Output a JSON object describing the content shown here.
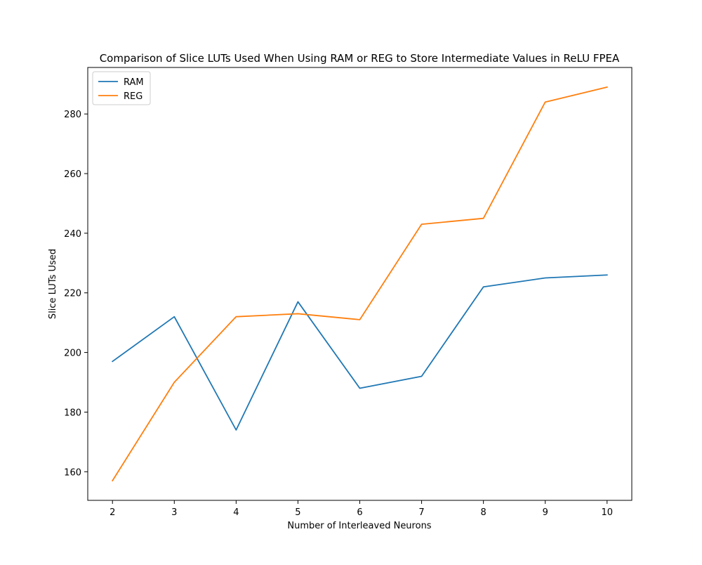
{
  "chart_data": {
    "type": "line",
    "title": "Comparison of Slice LUTs Used When Using RAM or REG to Store Intermediate Values in ReLU FPEA",
    "xlabel": "Number of Interleaved Neurons",
    "ylabel": "Slice LUTs Used",
    "x": [
      2,
      3,
      4,
      5,
      6,
      7,
      8,
      9,
      10
    ],
    "xticks": [
      2,
      3,
      4,
      5,
      6,
      7,
      8,
      9,
      10
    ],
    "yticks": [
      160,
      180,
      200,
      220,
      240,
      260,
      280
    ],
    "xlim": [
      1.6,
      10.4
    ],
    "ylim": [
      150.4,
      295.6
    ],
    "grid": false,
    "legend_position": "top-left",
    "series": [
      {
        "name": "RAM",
        "color": "#1f77b4",
        "values": [
          197,
          212,
          174,
          217,
          188,
          192,
          222,
          225,
          226
        ]
      },
      {
        "name": "REG",
        "color": "#ff7f0e",
        "values": [
          157,
          190,
          212,
          213,
          211,
          243,
          245,
          284,
          289
        ]
      }
    ]
  }
}
